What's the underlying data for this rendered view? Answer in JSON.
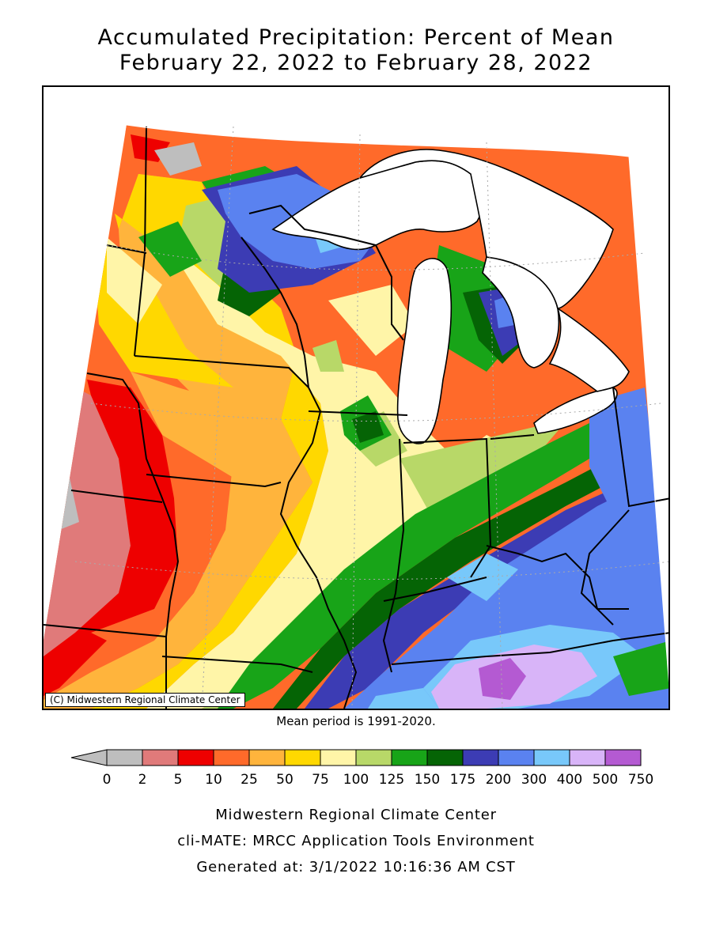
{
  "title_line1": "Accumulated Precipitation: Percent of Mean",
  "title_line2": "February 22, 2022 to February 28, 2022",
  "copyright": "(C) Midwestern Regional Climate Center",
  "mean_period": "Mean period is 1991-2020.",
  "legend": {
    "labels": [
      "0",
      "2",
      "5",
      "10",
      "25",
      "50",
      "75",
      "100",
      "125",
      "150",
      "175",
      "200",
      "300",
      "400",
      "500",
      "750"
    ],
    "colors": [
      "#bebebe",
      "#e07a7a",
      "#ee0000",
      "#ff6a2a",
      "#ffb43c",
      "#ffd800",
      "#fff5a8",
      "#b8d868",
      "#18a418",
      "#056405",
      "#3c3cb4",
      "#5a82f0",
      "#78c8fa",
      "#d8b4f8",
      "#b45ad2"
    ],
    "under_color": "#bebebe"
  },
  "footer": {
    "line1": "Midwestern Regional Climate Center",
    "line2": "cli-MATE: MRCC Application Tools Environment",
    "line3": "Generated at: 3/1/2022 10:16:36 AM CST"
  }
}
